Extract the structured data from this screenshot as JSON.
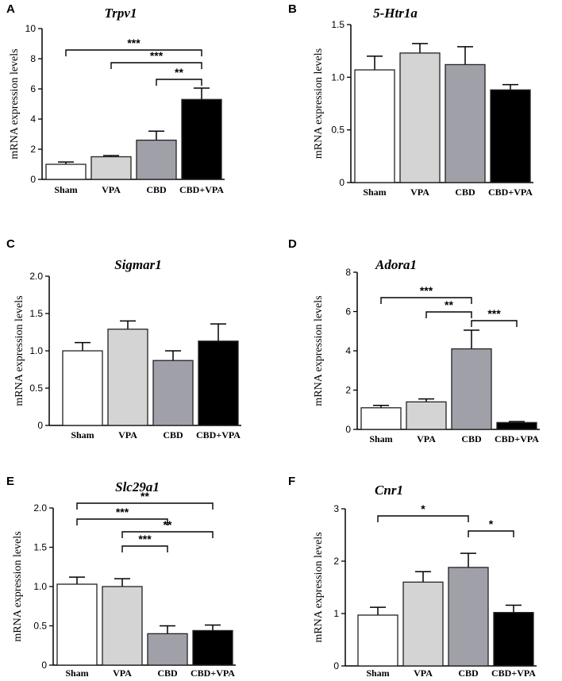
{
  "chart_data": [
    {
      "type": "bar",
      "panel": "A",
      "title": "Trpv1",
      "ylabel": "mRNA expression levels",
      "categories": [
        "Sham",
        "VPA",
        "CBD",
        "CBD+VPA"
      ],
      "values": [
        1.0,
        1.5,
        2.6,
        5.3
      ],
      "errors": [
        0.15,
        0.08,
        0.6,
        0.75
      ],
      "ylim": [
        0,
        10
      ],
      "yticks": [
        "0",
        "2",
        "4",
        "6",
        "8",
        "10"
      ],
      "colors": [
        "#ffffff",
        "#d4d4d4",
        "#a0a0a8",
        "#000000"
      ],
      "significance": [
        {
          "from": 0,
          "to": 3,
          "label": "***"
        },
        {
          "from": 1,
          "to": 3,
          "label": "***"
        },
        {
          "from": 2,
          "to": 3,
          "label": "**"
        }
      ]
    },
    {
      "type": "bar",
      "panel": "B",
      "title": "5-Htr1a",
      "ylabel": "mRNA expression levels",
      "categories": [
        "Sham",
        "VPA",
        "CBD",
        "CBD+VPA"
      ],
      "values": [
        1.07,
        1.23,
        1.12,
        0.88
      ],
      "errors": [
        0.13,
        0.09,
        0.17,
        0.05
      ],
      "ylim": [
        0,
        1.5
      ],
      "yticks": [
        "0",
        "0.5",
        "1.0",
        "1.5"
      ],
      "colors": [
        "#ffffff",
        "#d4d4d4",
        "#a0a0a8",
        "#000000"
      ],
      "significance": []
    },
    {
      "type": "bar",
      "panel": "C",
      "title": "Sigmar1",
      "ylabel": "mRNA expression levels",
      "categories": [
        "Sham",
        "VPA",
        "CBD",
        "CBD+VPA"
      ],
      "values": [
        1.0,
        1.29,
        0.87,
        1.13
      ],
      "errors": [
        0.11,
        0.11,
        0.13,
        0.23
      ],
      "ylim": [
        0,
        2.0
      ],
      "yticks": [
        "0",
        "0.5",
        "1.0",
        "1.5",
        "2.0"
      ],
      "colors": [
        "#ffffff",
        "#d4d4d4",
        "#a0a0a8",
        "#000000"
      ],
      "significance": []
    },
    {
      "type": "bar",
      "panel": "D",
      "title": "Adora1",
      "ylabel": "mRNA expression levels",
      "categories": [
        "Sham",
        "VPA",
        "CBD",
        "CBD+VPA"
      ],
      "values": [
        1.1,
        1.4,
        4.1,
        0.35
      ],
      "errors": [
        0.12,
        0.15,
        0.95,
        0.05
      ],
      "ylim": [
        0,
        8
      ],
      "yticks": [
        "0",
        "2",
        "4",
        "6",
        "8"
      ],
      "colors": [
        "#ffffff",
        "#d4d4d4",
        "#a0a0a8",
        "#000000"
      ],
      "significance": [
        {
          "from": 0,
          "to": 2,
          "label": "***"
        },
        {
          "from": 1,
          "to": 2,
          "label": "**"
        },
        {
          "from": 2,
          "to": 3,
          "label": "***"
        }
      ]
    },
    {
      "type": "bar",
      "panel": "E",
      "title": "Slc29a1",
      "ylabel": "mRNA expression levels",
      "categories": [
        "Sham",
        "VPA",
        "CBD",
        "CBD+VPA"
      ],
      "values": [
        1.03,
        1.0,
        0.4,
        0.44
      ],
      "errors": [
        0.09,
        0.1,
        0.1,
        0.07
      ],
      "ylim": [
        0,
        2.0
      ],
      "yticks": [
        "0",
        "0.5",
        "1.0",
        "1.5",
        "2.0"
      ],
      "colors": [
        "#ffffff",
        "#d4d4d4",
        "#a0a0a8",
        "#000000"
      ],
      "significance": [
        {
          "from": 0,
          "to": 3,
          "label": "**"
        },
        {
          "from": 0,
          "to": 2,
          "label": "***"
        },
        {
          "from": 1,
          "to": 3,
          "label": "**"
        },
        {
          "from": 1,
          "to": 2,
          "label": "***"
        }
      ]
    },
    {
      "type": "bar",
      "panel": "F",
      "title": "Cnr1",
      "ylabel": "mRNA expression levels",
      "categories": [
        "Sham",
        "VPA",
        "CBD",
        "CBD+VPA"
      ],
      "values": [
        0.97,
        1.6,
        1.88,
        1.02
      ],
      "errors": [
        0.15,
        0.2,
        0.27,
        0.14
      ],
      "ylim": [
        0,
        3
      ],
      "yticks": [
        "0",
        "1",
        "2",
        "3"
      ],
      "colors": [
        "#ffffff",
        "#d4d4d4",
        "#a0a0a8",
        "#000000"
      ],
      "significance": [
        {
          "from": 0,
          "to": 2,
          "label": "*"
        },
        {
          "from": 2,
          "to": 3,
          "label": "*"
        }
      ]
    }
  ]
}
